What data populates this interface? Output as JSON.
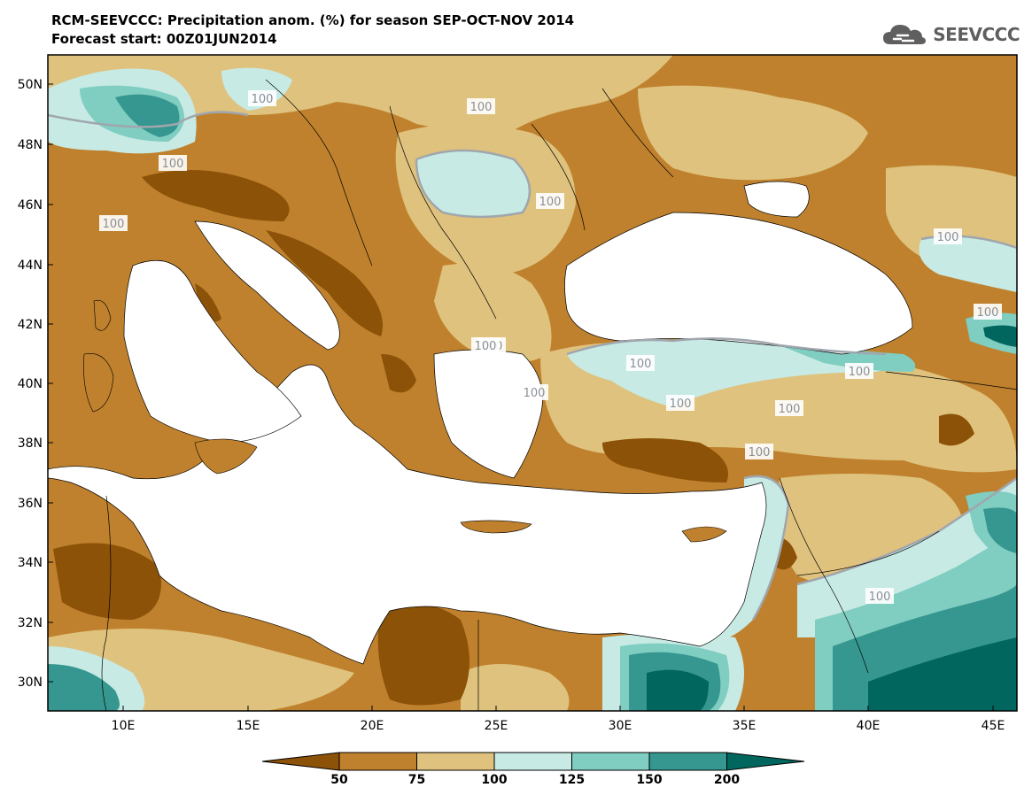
{
  "header": {
    "title_line1": "RCM-SEEVCCC: Precipitation anom. (%) for season SEP-OCT-NOV 2014",
    "title_line2": "Forecast start: 00Z01JUN2014"
  },
  "logo": {
    "text": "SEEVCCC",
    "icon": "cloud-icon",
    "color": "#5f5f5f"
  },
  "map": {
    "lat_labels": [
      "50N",
      "48N",
      "46N",
      "44N",
      "42N",
      "40N",
      "38N",
      "36N",
      "34N",
      "32N",
      "30N"
    ],
    "lon_labels": [
      "10E",
      "15E",
      "20E",
      "25E",
      "30E",
      "35E",
      "40E",
      "45E"
    ],
    "contour_labels": [
      "100",
      "100",
      "100",
      "100",
      "100",
      "100",
      "100",
      "100",
      "100",
      "100",
      "100",
      "100",
      "100",
      "100",
      "100",
      "100"
    ]
  },
  "legend": {
    "levels": [
      "50",
      "75",
      "100",
      "125",
      "150",
      "200"
    ],
    "colors": [
      "#8c5208",
      "#bf812d",
      "#dfc27d",
      "#c7eae5",
      "#80cdc1",
      "#35978f",
      "#01665e"
    ]
  },
  "colors": {
    "very_dry": "#8c5208",
    "dry": "#bf812d",
    "slightly_dry": "#dfc27d",
    "slightly_wet": "#c7eae5",
    "wet": "#80cdc1",
    "very_wet": "#35978f",
    "extreme_wet": "#01665e",
    "contour_100": "#a0a6ad"
  }
}
